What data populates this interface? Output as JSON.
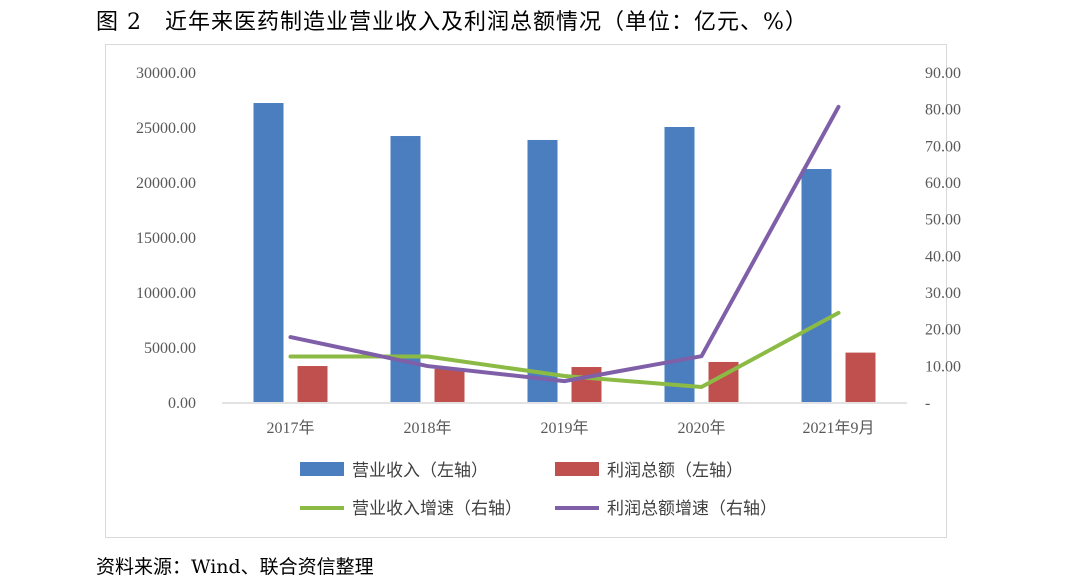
{
  "title": "图 2　近年来医药制造业营业收入及利润总额情况（单位：亿元、%）",
  "source": "资料来源：Wind、联合资信整理",
  "chart_data": {
    "type": "bar",
    "categories": [
      "2017年",
      "2018年",
      "2019年",
      "2020年",
      "2021年9月"
    ],
    "y_left": {
      "range": [
        0,
        30000
      ],
      "ticks": [
        "0.00",
        "5000.00",
        "10000.00",
        "15000.00",
        "20000.00",
        "25000.00",
        "30000.00"
      ]
    },
    "y_right": {
      "range": [
        0,
        90
      ],
      "ticks": [
        "-",
        "10.00",
        "20.00",
        "30.00",
        "40.00",
        "50.00",
        "60.00",
        "70.00",
        "80.00",
        "90.00"
      ]
    },
    "grid": false,
    "legend_placement": "bottom",
    "series": [
      {
        "name": "营业收入（左轴）",
        "type": "bar",
        "axis": "left",
        "color": "#4a7ebf",
        "values": [
          27180,
          24180,
          23820,
          25000,
          21180
        ]
      },
      {
        "name": "利润总额（左轴）",
        "type": "bar",
        "axis": "left",
        "color": "#c0504d",
        "values": [
          3270,
          3000,
          3180,
          3640,
          4490
        ]
      },
      {
        "name": "营业收入增速（右轴）",
        "type": "line",
        "axis": "right",
        "color": "#8cbb45",
        "values": [
          12.4,
          12.4,
          7.1,
          4.1,
          24.3
        ]
      },
      {
        "name": "利润总额增速（右轴）",
        "type": "line",
        "axis": "right",
        "color": "#7f5fa8",
        "values": [
          17.7,
          9.8,
          5.7,
          12.5,
          80.5
        ]
      }
    ]
  }
}
